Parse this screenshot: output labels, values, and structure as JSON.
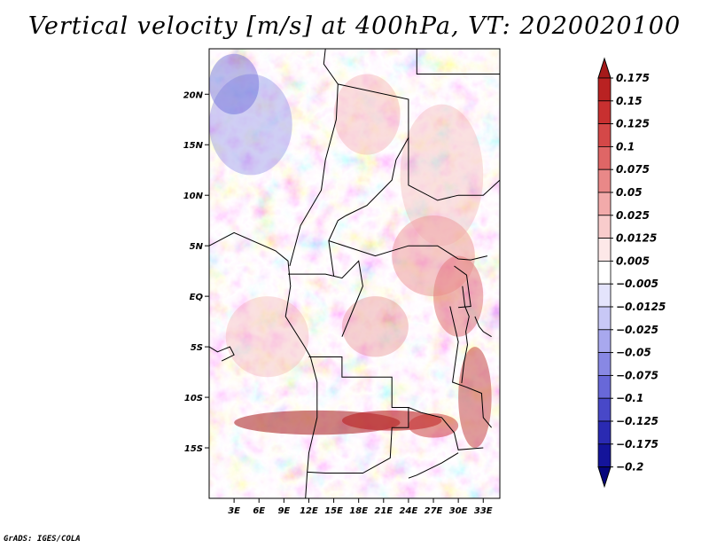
{
  "chart_data": {
    "type": "heatmap",
    "title": "Vertical velocity [m/s] at 400hPa, VT: 2020020100",
    "x_axis": {
      "ticks": [
        "3E",
        "6E",
        "9E",
        "12E",
        "15E",
        "18E",
        "21E",
        "24E",
        "27E",
        "30E",
        "33E"
      ],
      "values": [
        3,
        6,
        9,
        12,
        15,
        18,
        21,
        24,
        27,
        30,
        33
      ],
      "range": [
        0,
        35
      ]
    },
    "y_axis": {
      "ticks": [
        "15S",
        "10S",
        "5S",
        "EQ",
        "5N",
        "10N",
        "15N",
        "20N"
      ],
      "values": [
        -15,
        -10,
        -5,
        0,
        5,
        10,
        15,
        20
      ],
      "range": [
        -20,
        24.5
      ]
    },
    "colorbar": {
      "labels": [
        "0.175",
        "0.15",
        "0.125",
        "0.1",
        "0.075",
        "0.05",
        "0.025",
        "0.0125",
        "0.005",
        "−0.005",
        "−0.0125",
        "−0.025",
        "−0.05",
        "−0.075",
        "−0.1",
        "−0.125",
        "−0.175",
        "−0.2"
      ],
      "colors": [
        "#a51a1a",
        "#b92222",
        "#c83030",
        "#d44848",
        "#df6666",
        "#e98888",
        "#f2aaaa",
        "#f8cccc",
        "#fde8e8",
        "#ffffff",
        "#e4e4fc",
        "#c8c8f6",
        "#a8a8ee",
        "#8888e4",
        "#6868d8",
        "#4848c8",
        "#2a2ab2",
        "#14149a",
        "#06067c"
      ],
      "position": "right"
    }
  },
  "footer": {
    "credit": "GrADS: IGES/COLA"
  }
}
